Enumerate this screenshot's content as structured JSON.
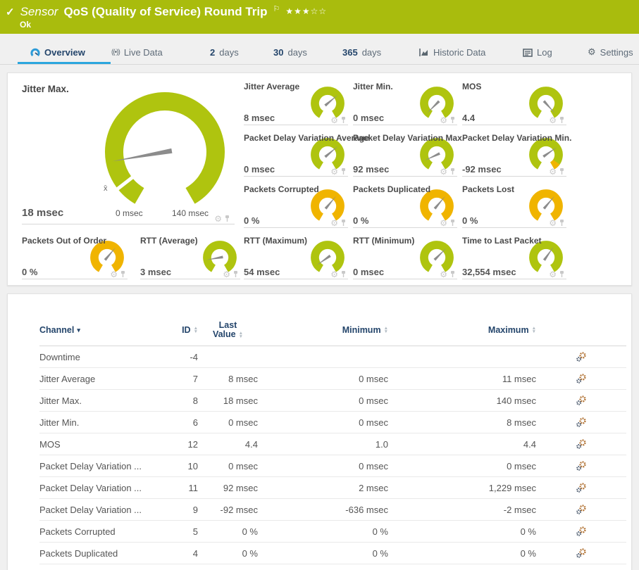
{
  "colors": {
    "headerbg": "#A9BC0D",
    "green": "#AFC40F",
    "yellow": "#F0B400",
    "blue": "#2BA6DE",
    "navy": "#24456b",
    "pagebg": "#f0f0f0"
  },
  "header": {
    "check": "✓",
    "kind": "Sensor",
    "title": "QoS (Quality of Service) Round Trip",
    "flag": "⚐",
    "stars_filled": "★★★",
    "stars_empty": "☆☆",
    "status": "Ok"
  },
  "tabs": [
    {
      "label": "Overview"
    },
    {
      "label": "Live Data"
    },
    {
      "num": "2",
      "unit": "days"
    },
    {
      "num": "30",
      "unit": "days"
    },
    {
      "num": "365",
      "unit": "days"
    },
    {
      "label": "Historic Data"
    },
    {
      "label": "Log"
    },
    {
      "label": "Settings"
    }
  ],
  "gauges": {
    "main": {
      "label": "Jitter Max.",
      "value": "18 msec",
      "min_label": "0 msec",
      "max_label": "140 msec",
      "avg_marker": "x̄",
      "needle": 170,
      "color": "#AFC40F"
    },
    "cells": [
      {
        "label": "Jitter Average",
        "value": "8 msec",
        "color": "#AFC40F",
        "needle": 320
      },
      {
        "label": "Jitter Min.",
        "value": "0 msec",
        "color": "#AFC40F",
        "needle": 135
      },
      {
        "label": "MOS",
        "value": "4.4",
        "color": "#AFC40F",
        "needle": 48
      },
      {
        "label": "Packet Delay Variation Average",
        "value": "0 msec",
        "color": "#AFC40F",
        "needle": 320
      },
      {
        "label": "Packet Delay Variation Max.",
        "value": "92 msec",
        "color": "#AFC40F",
        "needle": 155
      },
      {
        "label": "Packet Delay Variation Min.",
        "value": "-92 msec",
        "color": "#AFC40F",
        "needle": 325
      },
      {
        "label": "Packets Corrupted",
        "value": "0 %",
        "color": "#F0B400",
        "needle": 310
      },
      {
        "label": "Packets Duplicated",
        "value": "0 %",
        "color": "#F0B400",
        "needle": 310
      },
      {
        "label": "Packets Lost",
        "value": "0 %",
        "color": "#F0B400",
        "needle": 310
      },
      {
        "label": "Packets Out of Order",
        "value": "0 %",
        "color": "#F0B400",
        "needle": 310
      },
      {
        "label": "RTT (Average)",
        "value": "3 msec",
        "color": "#AFC40F",
        "needle": 170
      },
      {
        "label": "RTT (Maximum)",
        "value": "54 msec",
        "color": "#AFC40F",
        "needle": 145
      },
      {
        "label": "RTT (Minimum)",
        "value": "0 msec",
        "color": "#AFC40F",
        "needle": 315
      },
      {
        "label": "Time to Last Packet",
        "value": "32,554 msec",
        "color": "#AFC40F",
        "needle": 305
      }
    ]
  },
  "table": {
    "headers": {
      "channel": "Channel",
      "id": "ID",
      "last_1": "Last",
      "last_2": "Value",
      "min": "Minimum",
      "max": "Maximum"
    },
    "rows": [
      {
        "name": "Downtime",
        "id": "-4",
        "last": "",
        "min": "",
        "max": ""
      },
      {
        "name": "Jitter Average",
        "id": "7",
        "last": "8 msec",
        "min": "0 msec",
        "max": "11 msec"
      },
      {
        "name": "Jitter Max.",
        "id": "8",
        "last": "18 msec",
        "min": "0 msec",
        "max": "140 msec"
      },
      {
        "name": "Jitter Min.",
        "id": "6",
        "last": "0 msec",
        "min": "0 msec",
        "max": "8 msec"
      },
      {
        "name": "MOS",
        "id": "12",
        "last": "4.4",
        "min": "1.0",
        "max": "4.4"
      },
      {
        "name": "Packet Delay Variation ...",
        "id": "10",
        "last": "0 msec",
        "min": "0 msec",
        "max": "0 msec"
      },
      {
        "name": "Packet Delay Variation ...",
        "id": "11",
        "last": "92 msec",
        "min": "2 msec",
        "max": "1,229 msec"
      },
      {
        "name": "Packet Delay Variation ...",
        "id": "9",
        "last": "-92 msec",
        "min": "-636 msec",
        "max": "-2 msec"
      },
      {
        "name": "Packets Corrupted",
        "id": "5",
        "last": "0 %",
        "min": "0 %",
        "max": "0 %"
      },
      {
        "name": "Packets Duplicated",
        "id": "4",
        "last": "0 %",
        "min": "0 %",
        "max": "0 %"
      }
    ]
  }
}
